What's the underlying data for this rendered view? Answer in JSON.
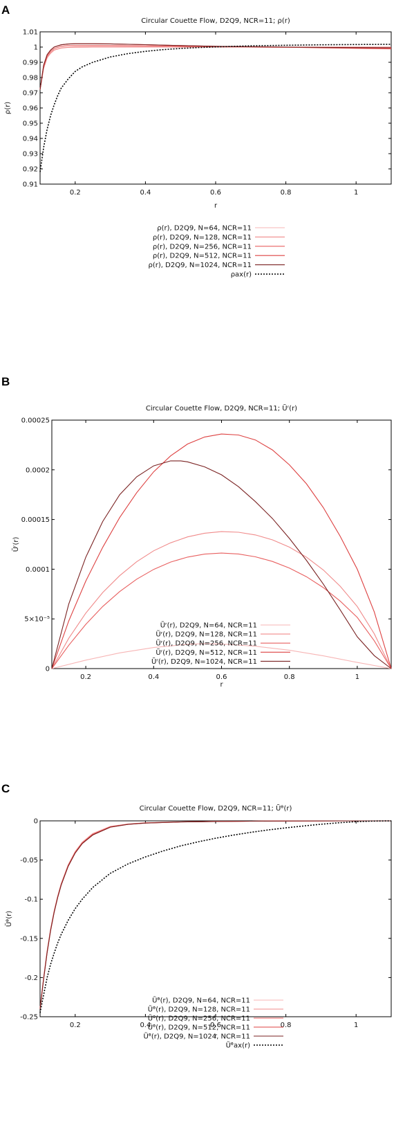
{
  "chart_data": [
    {
      "panel": "A",
      "type": "line",
      "title": "Circular Couette Flow, D2Q9, NCR=11; ρ(r)",
      "xlabel": "r",
      "ylabel": "ρ(r)",
      "xlim": [
        0.1,
        1.1
      ],
      "ylim": [
        0.91,
        1.01
      ],
      "xticks": [
        "0.2",
        "0.4",
        "0.6",
        "0.8",
        "1"
      ],
      "xtick_values": [
        0.2,
        0.4,
        0.6,
        0.8,
        1.0
      ],
      "yticks": [
        "0.91",
        "0.92",
        "0.93",
        "0.94",
        "0.95",
        "0.96",
        "0.97",
        "0.98",
        "0.99",
        "1",
        "1.01"
      ],
      "ytick_values": [
        0.91,
        0.92,
        0.93,
        0.94,
        0.95,
        0.96,
        0.97,
        0.98,
        0.99,
        1.0,
        1.01
      ],
      "legend_position": "bottom-right",
      "series": [
        {
          "name": "ρ(r), D2Q9, N=64, NCR=11",
          "color": "#f7b5b5",
          "dash": "",
          "x": [
            0.1,
            0.11,
            0.12,
            0.13,
            0.14,
            0.16,
            0.18,
            0.2,
            0.25,
            0.3,
            0.4,
            0.5,
            0.6,
            0.7,
            0.8,
            0.9,
            1.0,
            1.1
          ],
          "y": [
            0.972,
            0.986,
            0.993,
            0.996,
            0.998,
            0.9995,
            1.0,
            1.0002,
            1.0003,
            1.0003,
            1.0003,
            1.0002,
            1.0001,
            1.0,
            1.0,
            0.9998,
            0.9996,
            0.9993
          ]
        },
        {
          "name": "ρ(r), D2Q9, N=128, NCR=11",
          "color": "#f08a8a",
          "dash": "",
          "x": [
            0.1,
            0.11,
            0.12,
            0.13,
            0.14,
            0.16,
            0.18,
            0.2,
            0.25,
            0.3,
            0.4,
            0.5,
            0.6,
            0.7,
            0.8,
            0.9,
            1.0,
            1.1
          ],
          "y": [
            0.972,
            0.986,
            0.993,
            0.996,
            0.998,
            0.9993,
            0.9998,
            0.9999,
            1.0,
            1.0,
            1.0,
            1.0,
            1.0,
            1.0,
            1.0,
            1.0,
            1.0,
            1.0
          ]
        },
        {
          "name": "ρ(r), D2Q9, N=256, NCR=11",
          "color": "#e85f5f",
          "dash": "",
          "x": [
            0.1,
            0.11,
            0.12,
            0.13,
            0.14,
            0.16,
            0.18,
            0.2,
            0.25,
            0.3,
            0.4,
            0.5,
            0.6,
            0.7,
            0.8,
            0.9,
            1.0,
            1.1
          ],
          "y": [
            0.972,
            0.987,
            0.994,
            0.997,
            0.999,
            1.0005,
            1.001,
            1.001,
            1.001,
            1.001,
            1.0008,
            1.0005,
            1.0002,
            1.0,
            0.9998,
            0.9997,
            0.9996,
            0.9995
          ]
        },
        {
          "name": "ρ(r), D2Q9, N=512, NCR=11",
          "color": "#dd4040",
          "dash": "",
          "x": [
            0.1,
            0.11,
            0.12,
            0.13,
            0.14,
            0.16,
            0.18,
            0.2,
            0.25,
            0.3,
            0.4,
            0.5,
            0.6,
            0.7,
            0.8,
            0.9,
            1.0,
            1.1
          ],
          "y": [
            0.972,
            0.988,
            0.995,
            0.998,
            1.0,
            1.0015,
            1.002,
            1.0022,
            1.0022,
            1.0021,
            1.0016,
            1.001,
            1.0005,
            1.0002,
            1.0,
            0.9995,
            0.9992,
            0.9988
          ]
        },
        {
          "name": "ρ(r), D2Q9, N=1024, NCR=11",
          "color": "#7a2222",
          "dash": "",
          "x": [
            0.1,
            0.11,
            0.12,
            0.13,
            0.14,
            0.16,
            0.18,
            0.2,
            0.25,
            0.3,
            0.4,
            0.5,
            0.6,
            0.7,
            0.8,
            0.9,
            1.0,
            1.1
          ],
          "y": [
            0.972,
            0.988,
            0.995,
            0.998,
            1.0,
            1.0015,
            1.002,
            1.0022,
            1.0022,
            1.0021,
            1.0016,
            1.001,
            1.0005,
            1.0002,
            1.0,
            0.9998,
            0.9997,
            0.9996
          ]
        },
        {
          "name": "ρax(r)",
          "color": "#000000",
          "dash": "2,2",
          "x": [
            0.1,
            0.11,
            0.12,
            0.13,
            0.14,
            0.15,
            0.16,
            0.18,
            0.2,
            0.22,
            0.25,
            0.3,
            0.35,
            0.4,
            0.45,
            0.5,
            0.55,
            0.6,
            0.7,
            0.8,
            0.9,
            1.0,
            1.1
          ],
          "y": [
            0.918,
            0.934,
            0.946,
            0.955,
            0.962,
            0.968,
            0.973,
            0.979,
            0.984,
            0.987,
            0.99,
            0.9935,
            0.9957,
            0.9972,
            0.9983,
            0.9991,
            0.9997,
            1.0001,
            1.0008,
            1.0012,
            1.0015,
            1.0017,
            1.0018
          ]
        }
      ]
    },
    {
      "panel": "B",
      "type": "line",
      "title": "Circular Couette Flow, D2Q9, NCR=11; Ũʳ(r)",
      "xlabel": "r",
      "ylabel": "Ũʳ(r)",
      "xlim": [
        0.1,
        1.1
      ],
      "ylim": [
        0,
        0.00025
      ],
      "xticks": [
        "0.2",
        "0.4",
        "0.6",
        "0.8",
        "1"
      ],
      "xtick_values": [
        0.2,
        0.4,
        0.6,
        0.8,
        1.0
      ],
      "yticks": [
        "0",
        "5×10⁻⁵",
        "0.0001",
        "0.00015",
        "0.0002",
        "0.00025"
      ],
      "ytick_values": [
        0,
        5e-05,
        0.0001,
        0.00015,
        0.0002,
        0.00025
      ],
      "legend_position": "bottom-right",
      "series": [
        {
          "name": "Ũʳ(r), D2Q9, N=64, NCR=11",
          "color": "#f7b5b5",
          "dash": "",
          "x": [
            0.1,
            0.2,
            0.3,
            0.4,
            0.5,
            0.55,
            0.6,
            0.7,
            0.8,
            0.9,
            1.0,
            1.1
          ],
          "y": [
            0.0,
            8.5e-06,
            1.58e-05,
            2.12e-05,
            2.45e-05,
            2.5e-05,
            2.47e-05,
            2.25e-05,
            1.85e-05,
            1.28e-05,
            6.2e-06,
            0.0
          ]
        },
        {
          "name": "Ũʳ(r), D2Q9, N=128, NCR=11",
          "color": "#f08a8a",
          "dash": "",
          "x": [
            0.1,
            0.15,
            0.2,
            0.25,
            0.3,
            0.35,
            0.4,
            0.45,
            0.5,
            0.55,
            0.6,
            0.65,
            0.7,
            0.75,
            0.8,
            0.85,
            0.9,
            0.95,
            1.0,
            1.05,
            1.1
          ],
          "y": [
            0.0,
            3.05e-05,
            5.58e-05,
            7.65e-05,
            9.35e-05,
            0.0001075,
            0.0001185,
            0.0001265,
            0.0001325,
            0.0001362,
            0.0001378,
            0.0001372,
            0.0001345,
            0.0001295,
            0.0001222,
            0.0001122,
            9.92e-05,
            8.28e-05,
            6.25e-05,
            3.5e-05,
            0.0
          ]
        },
        {
          "name": "Ũʳ(r), D2Q9, N=256, NCR=11",
          "color": "#e85f5f",
          "dash": "",
          "x": [
            0.1,
            0.15,
            0.2,
            0.25,
            0.3,
            0.35,
            0.4,
            0.45,
            0.5,
            0.55,
            0.6,
            0.65,
            0.7,
            0.75,
            0.8,
            0.85,
            0.9,
            0.95,
            1.0,
            1.05,
            1.1
          ],
          "y": [
            0.0,
            2.35e-05,
            4.45e-05,
            6.25e-05,
            7.75e-05,
            9e-05,
            9.98e-05,
            0.0001072,
            0.0001122,
            0.0001152,
            0.0001162,
            0.0001153,
            0.0001125,
            0.0001078,
            0.0001012,
            9.25e-05,
            8.15e-05,
            6.78e-05,
            5.15e-05,
            2.8e-05,
            0.0
          ]
        },
        {
          "name": "Ũʳ(r), D2Q9, N=512, NCR=11",
          "color": "#dd4040",
          "dash": "",
          "x": [
            0.1,
            0.15,
            0.2,
            0.25,
            0.3,
            0.35,
            0.4,
            0.45,
            0.5,
            0.55,
            0.6,
            0.65,
            0.7,
            0.75,
            0.8,
            0.85,
            0.9,
            0.95,
            1.0,
            1.05,
            1.1
          ],
          "y": [
            0.0,
            4.8e-05,
            8.8e-05,
            0.000122,
            0.000152,
            0.000177,
            0.000198,
            0.000214,
            0.000226,
            0.000233,
            0.000236,
            0.000235,
            0.00023,
            0.00022,
            0.000205,
            0.000186,
            0.000162,
            0.000133,
            0.0001,
            5.7e-05,
            0.0
          ]
        },
        {
          "name": "Ũʳ(r), D2Q9, N=1024, NCR=11",
          "color": "#7a2222",
          "dash": "",
          "x": [
            0.1,
            0.15,
            0.2,
            0.25,
            0.3,
            0.35,
            0.4,
            0.45,
            0.48,
            0.5,
            0.55,
            0.6,
            0.65,
            0.7,
            0.75,
            0.8,
            0.85,
            0.9,
            0.95,
            1.0,
            1.05,
            1.1
          ],
          "y": [
            0.0,
            6.5e-05,
            0.000112,
            0.000148,
            0.000175,
            0.000193,
            0.000204,
            0.000209,
            0.000209,
            0.000208,
            0.000203,
            0.000195,
            0.000183,
            0.000168,
            0.000151,
            0.000131,
            0.000109,
            8.5e-05,
            5.9e-05,
            3.2e-05,
            1.3e-05,
            0.0
          ]
        }
      ]
    },
    {
      "panel": "C",
      "type": "line",
      "title": "Circular Couette Flow, D2Q9, NCR=11; Ũᶿ(r)",
      "xlabel": "r",
      "ylabel": "Ũᶿ(r)",
      "xlim": [
        0.1,
        1.1
      ],
      "ylim": [
        -0.25,
        0
      ],
      "xticks": [
        "0.2",
        "0.4",
        "0.6",
        "0.8",
        "1"
      ],
      "xtick_values": [
        0.2,
        0.4,
        0.6,
        0.8,
        1.0
      ],
      "yticks": [
        "-0.25",
        "-0.2",
        "-0.15",
        "-0.1",
        "-0.05",
        "0"
      ],
      "ytick_values": [
        -0.25,
        -0.2,
        -0.15,
        -0.1,
        -0.05,
        0
      ],
      "legend_position": "bottom-right",
      "series": [
        {
          "name": "Ũᶿ(r), D2Q9, N=64, NCR=11",
          "color": "#f7b5b5",
          "dash": "",
          "x": [
            0.1,
            0.11,
            0.12,
            0.13,
            0.14,
            0.15,
            0.16,
            0.18,
            0.2,
            0.22,
            0.25,
            0.3,
            0.35,
            0.4,
            0.5,
            0.6,
            0.7,
            0.8,
            0.9,
            1.0,
            1.1
          ],
          "y": [
            -0.24,
            -0.2,
            -0.166,
            -0.138,
            -0.115,
            -0.096,
            -0.08,
            -0.056,
            -0.039,
            -0.027,
            -0.016,
            -0.007,
            -0.004,
            -0.0025,
            -0.0012,
            -0.0007,
            -0.0004,
            -0.0002,
            -0.0001,
            0.0,
            0.0
          ]
        },
        {
          "name": "Ũᶿ(r), D2Q9, N=128, NCR=11",
          "color": "#f08a8a",
          "dash": "",
          "x": [
            0.1,
            0.11,
            0.12,
            0.13,
            0.14,
            0.15,
            0.16,
            0.18,
            0.2,
            0.22,
            0.25,
            0.3,
            0.35,
            0.4,
            0.5,
            0.6,
            0.7,
            0.8,
            0.9,
            1.0,
            1.1
          ],
          "y": [
            -0.24,
            -0.201,
            -0.167,
            -0.139,
            -0.116,
            -0.097,
            -0.081,
            -0.057,
            -0.04,
            -0.028,
            -0.017,
            -0.0075,
            -0.0042,
            -0.0026,
            -0.0013,
            -0.0007,
            -0.0004,
            -0.0002,
            -0.0001,
            0.0,
            0.0
          ]
        },
        {
          "name": "Ũᶿ(r), D2Q9, N=256, NCR=11",
          "color": "#e85f5f",
          "dash": "",
          "x": [
            0.1,
            0.11,
            0.12,
            0.13,
            0.14,
            0.15,
            0.16,
            0.18,
            0.2,
            0.22,
            0.25,
            0.3,
            0.35,
            0.4,
            0.5,
            0.6,
            0.7,
            0.8,
            0.9,
            1.0,
            1.1
          ],
          "y": [
            -0.24,
            -0.201,
            -0.167,
            -0.139,
            -0.116,
            -0.097,
            -0.081,
            -0.057,
            -0.04,
            -0.028,
            -0.017,
            -0.0075,
            -0.0042,
            -0.0026,
            -0.0013,
            -0.0007,
            -0.0004,
            -0.0002,
            -0.0001,
            0.0,
            0.0
          ]
        },
        {
          "name": "Ũᶿ(r), D2Q9, N=512, NCR=11",
          "color": "#dd4040",
          "dash": "",
          "x": [
            0.1,
            0.11,
            0.12,
            0.13,
            0.14,
            0.15,
            0.16,
            0.18,
            0.2,
            0.22,
            0.25,
            0.3,
            0.35,
            0.4,
            0.5,
            0.6,
            0.7,
            0.8,
            0.9,
            1.0,
            1.1
          ],
          "y": [
            -0.24,
            -0.202,
            -0.168,
            -0.14,
            -0.117,
            -0.098,
            -0.082,
            -0.058,
            -0.041,
            -0.029,
            -0.018,
            -0.008,
            -0.0045,
            -0.0028,
            -0.0014,
            -0.0008,
            -0.0004,
            -0.0002,
            -0.0001,
            0.0,
            0.0
          ]
        },
        {
          "name": "Ũᶿ(r), D2Q9, N=1024, NCR=11",
          "color": "#7a2222",
          "dash": "",
          "x": [
            0.1,
            0.11,
            0.12,
            0.13,
            0.14,
            0.15,
            0.16,
            0.18,
            0.2,
            0.22,
            0.25,
            0.3,
            0.35,
            0.4,
            0.5,
            0.6,
            0.7,
            0.8,
            0.9,
            1.0,
            1.1
          ],
          "y": [
            -0.24,
            -0.202,
            -0.168,
            -0.14,
            -0.117,
            -0.098,
            -0.082,
            -0.058,
            -0.041,
            -0.029,
            -0.018,
            -0.008,
            -0.0045,
            -0.0028,
            -0.0014,
            -0.0008,
            -0.0004,
            -0.0002,
            -0.0001,
            0.0,
            0.0
          ]
        },
        {
          "name": "Ũᶿax(r)",
          "color": "#000000",
          "dash": "2,2",
          "x": [
            0.1,
            0.11,
            0.12,
            0.13,
            0.14,
            0.15,
            0.16,
            0.18,
            0.2,
            0.22,
            0.25,
            0.3,
            0.35,
            0.4,
            0.45,
            0.5,
            0.55,
            0.6,
            0.65,
            0.7,
            0.75,
            0.8,
            0.85,
            0.9,
            0.95,
            1.0,
            1.05,
            1.1
          ],
          "y": [
            -0.245,
            -0.222,
            -0.2,
            -0.183,
            -0.169,
            -0.156,
            -0.145,
            -0.127,
            -0.112,
            -0.1,
            -0.085,
            -0.067,
            -0.055,
            -0.046,
            -0.0385,
            -0.032,
            -0.0268,
            -0.0222,
            -0.0182,
            -0.0147,
            -0.0116,
            -0.0089,
            -0.0065,
            -0.0043,
            -0.0025,
            -0.0011,
            -0.0003,
            0.0
          ]
        }
      ]
    }
  ]
}
